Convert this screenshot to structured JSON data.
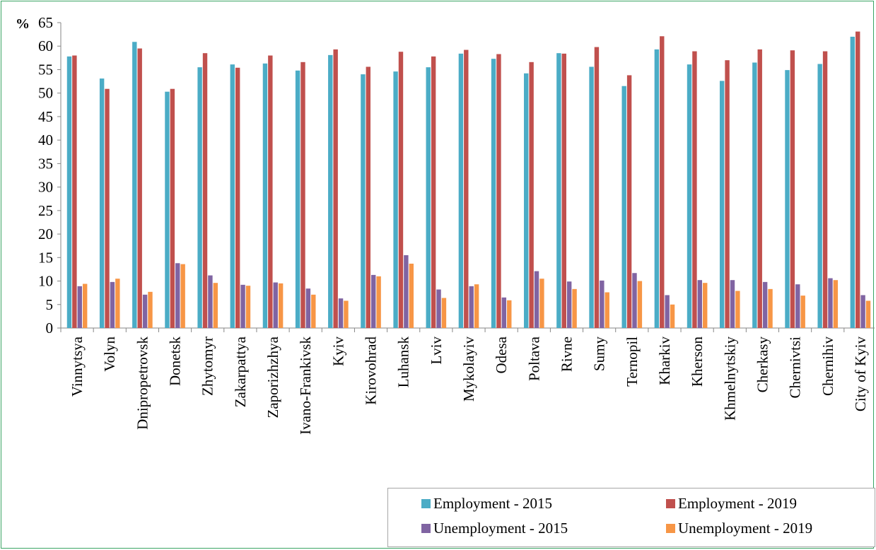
{
  "chart_data": {
    "type": "bar",
    "ylabel": "%",
    "ylim": [
      0,
      65
    ],
    "yticks": [
      0,
      5,
      10,
      15,
      20,
      25,
      30,
      35,
      40,
      45,
      50,
      55,
      60,
      65
    ],
    "grid": false,
    "legend_position": "bottom-right",
    "categories": [
      "Vinnytsya",
      "Volyn",
      "Dnipropetrovsk",
      "Donetsk",
      "Zhytomyr",
      "Zakarpattya",
      "Zaporizhzhya",
      "Ivano-Frankivsk",
      "Kyiv",
      "Kirovohrad",
      "Luhansk",
      "Lviv",
      "Mykolayiv",
      "Odesa",
      "Poltava",
      "Rivne",
      "Sumy",
      "Ternopil",
      "Kharkiv",
      "Kherson",
      "Khmelnytskiy",
      "Cherkasy",
      "Chernivtsi",
      "Chernihiv",
      "City of Kyiv"
    ],
    "series": [
      {
        "name": "Employment - 2015",
        "color": "#4bacc6",
        "values": [
          57.8,
          53.1,
          60.9,
          50.3,
          55.5,
          56.1,
          56.3,
          54.8,
          58.1,
          54.0,
          54.6,
          55.5,
          58.4,
          57.3,
          54.2,
          58.5,
          55.6,
          51.5,
          59.3,
          56.1,
          52.6,
          56.5,
          54.9,
          56.2,
          62.0
        ]
      },
      {
        "name": "Employment - 2019",
        "color": "#c0504d",
        "values": [
          58.0,
          50.9,
          59.5,
          50.9,
          58.5,
          55.4,
          58.0,
          56.6,
          59.3,
          55.6,
          58.8,
          57.8,
          59.2,
          58.3,
          56.6,
          58.4,
          59.8,
          53.8,
          62.1,
          58.9,
          57.0,
          59.3,
          59.1,
          58.9,
          63.1
        ]
      },
      {
        "name": "Unemployment - 2015",
        "color": "#8064a2",
        "values": [
          8.9,
          9.8,
          7.1,
          13.8,
          11.2,
          9.2,
          9.7,
          8.4,
          6.3,
          11.3,
          15.5,
          8.2,
          8.9,
          6.5,
          12.1,
          9.9,
          10.1,
          11.7,
          7.0,
          10.2,
          10.2,
          9.8,
          9.3,
          10.6,
          7.0
        ]
      },
      {
        "name": "Unemployment - 2019",
        "color": "#f79646",
        "values": [
          9.4,
          10.5,
          7.7,
          13.6,
          9.6,
          9.0,
          9.5,
          7.1,
          5.8,
          11.0,
          13.7,
          6.4,
          9.3,
          5.9,
          10.5,
          8.3,
          7.6,
          10.0,
          5.0,
          9.6,
          7.9,
          8.3,
          6.9,
          10.2,
          5.8
        ]
      }
    ]
  }
}
